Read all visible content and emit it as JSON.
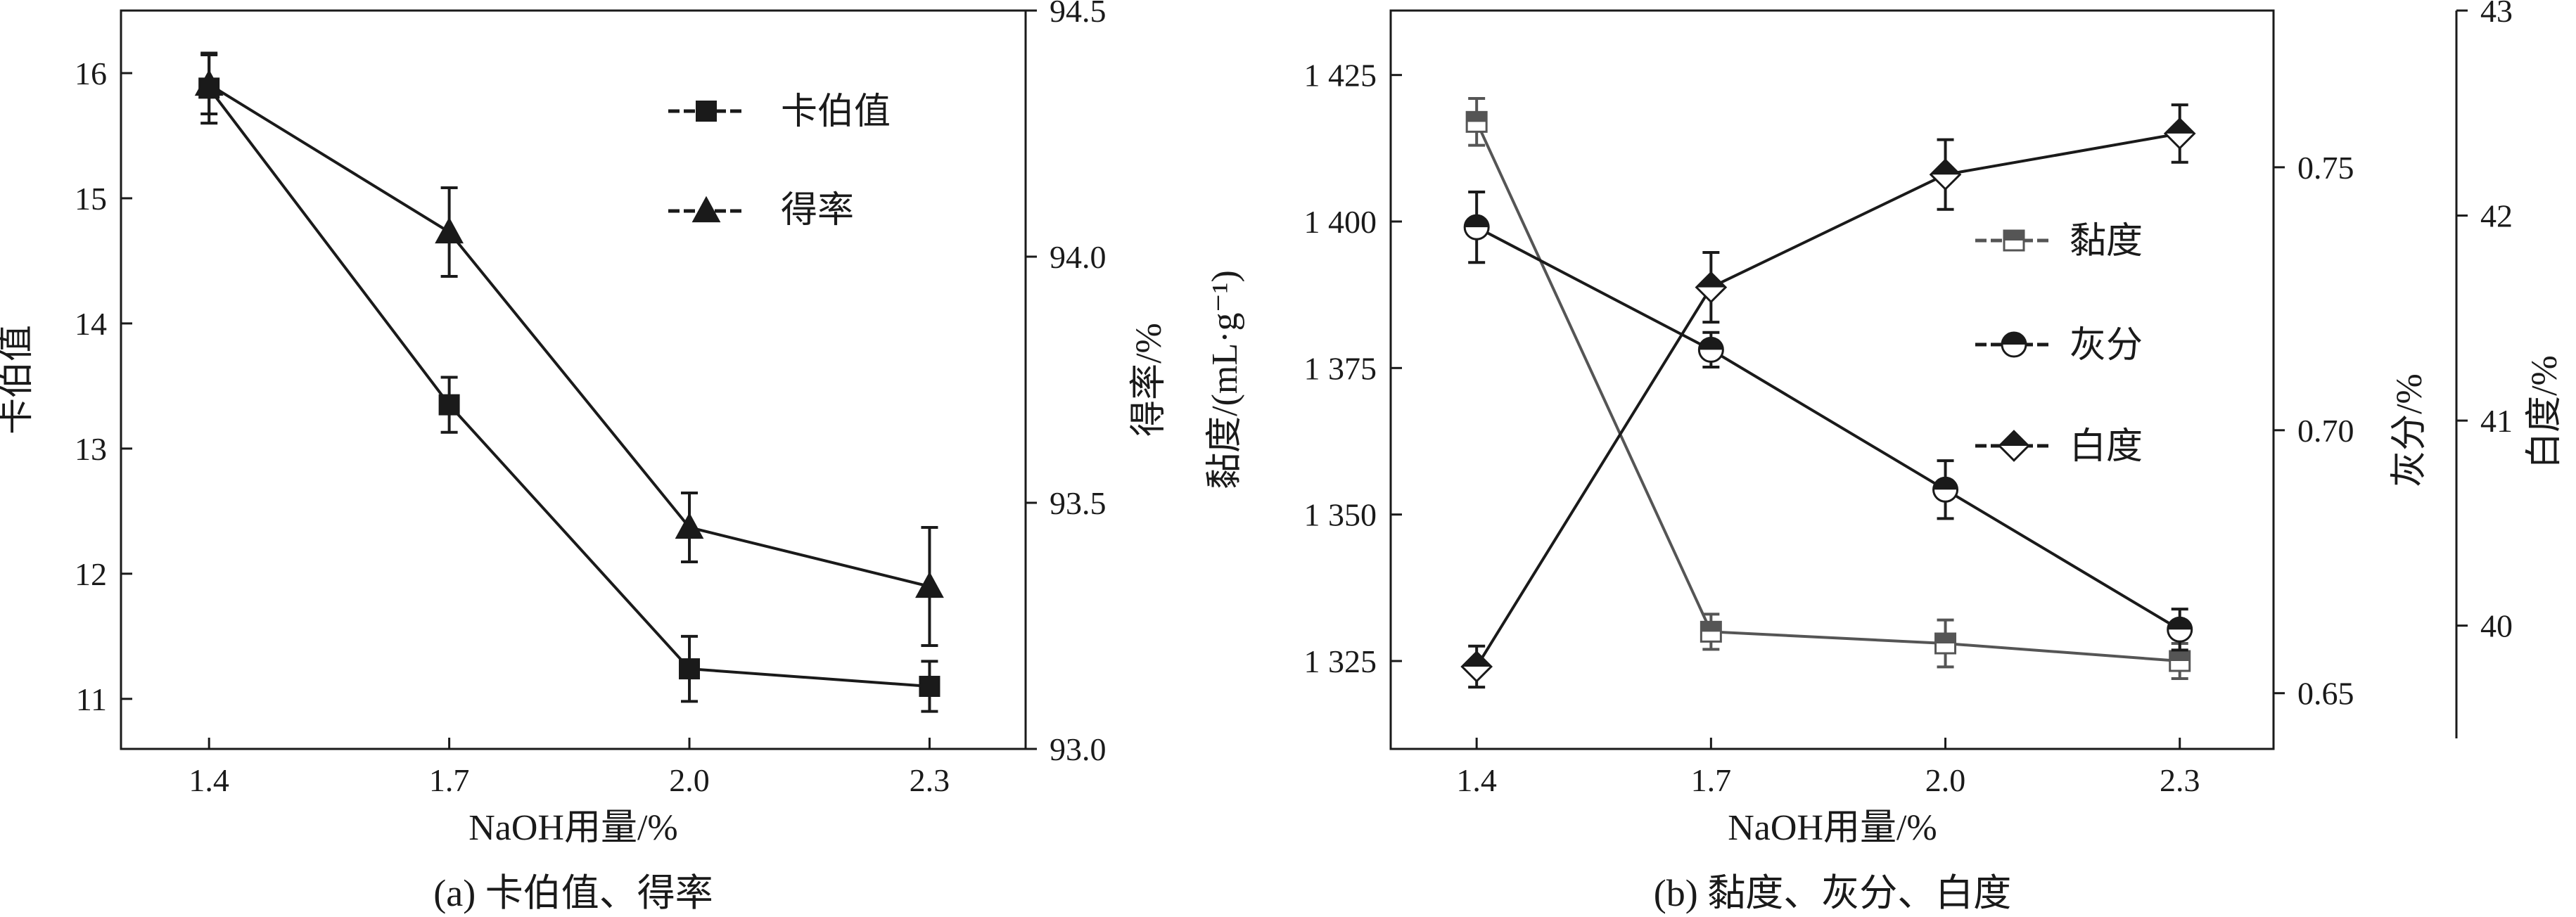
{
  "chart_data": [
    {
      "type": "line",
      "caption": "(a) 卡伯值、得率",
      "xlabel": "NaOH用量/%",
      "ylabel": "卡伯值",
      "y2label": "得率/%",
      "categories": [
        "1.4",
        "1.7",
        "2.0",
        "2.3"
      ],
      "x": [
        1.4,
        1.7,
        2.0,
        2.3
      ],
      "xlim": [
        1.29,
        2.42
      ],
      "ylim": [
        10.6,
        16.5
      ],
      "y2lim": [
        93.0,
        94.5
      ],
      "yticks": [
        "11",
        "12",
        "13",
        "14",
        "15",
        "16"
      ],
      "y2ticks": [
        "93.0",
        "93.5",
        "94.0",
        "94.5"
      ],
      "legend_position": "top-right",
      "series": [
        {
          "name": "卡伯值",
          "axis": "left",
          "marker": "square",
          "values": [
            15.88,
            13.35,
            11.24,
            11.1
          ],
          "errors": [
            0.28,
            0.22,
            0.26,
            0.2
          ],
          "color": "#1a1a1a"
        },
        {
          "name": "得率",
          "axis": "right",
          "marker": "triangle",
          "values": [
            94.35,
            94.05,
            93.45,
            93.33
          ],
          "errors": [
            0.06,
            0.09,
            0.07,
            0.12
          ],
          "color": "#1a1a1a"
        }
      ]
    },
    {
      "type": "line",
      "caption": "(b) 黏度、灰分、白度",
      "xlabel": "NaOH用量/%",
      "ylabel": "黏度/(mL·g⁻¹)",
      "y2label": "灰分/%",
      "y3label": "白度/%",
      "categories": [
        "1.4",
        "1.7",
        "2.0",
        "2.3"
      ],
      "x": [
        1.4,
        1.7,
        2.0,
        2.3
      ],
      "xlim": [
        1.29,
        2.42
      ],
      "ylim": [
        1310,
        1436
      ],
      "y2lim": [
        0.6394,
        0.7798
      ],
      "y3lim": [
        39.45,
        43.0
      ],
      "yticks": [
        "1 325",
        "1 350",
        "1 375",
        "1 400",
        "1 425"
      ],
      "y2ticks": [
        "0.65",
        "0.70",
        "0.75"
      ],
      "y3ticks": [
        "40",
        "41",
        "42",
        "43"
      ],
      "legend_position": "top-right",
      "series": [
        {
          "name": "黏度",
          "axis": "left",
          "marker": "half-square",
          "values": [
            1417,
            1330,
            1328,
            1325
          ],
          "errors": [
            4,
            3,
            4,
            3
          ],
          "color": "#555555"
        },
        {
          "name": "灰分",
          "axis": "right",
          "marker": "half-circle",
          "values": [
            0.7386,
            0.7153,
            0.6887,
            0.6621
          ],
          "errors": [
            0.0067,
            0.0033,
            0.0055,
            0.0039
          ],
          "color": "#1a1a1a"
        },
        {
          "name": "白度",
          "axis": "far-right",
          "marker": "half-diamond",
          "values": [
            39.8,
            41.65,
            42.2,
            42.4
          ],
          "errors": [
            0.1,
            0.17,
            0.17,
            0.14
          ],
          "color": "#1a1a1a"
        }
      ]
    }
  ]
}
